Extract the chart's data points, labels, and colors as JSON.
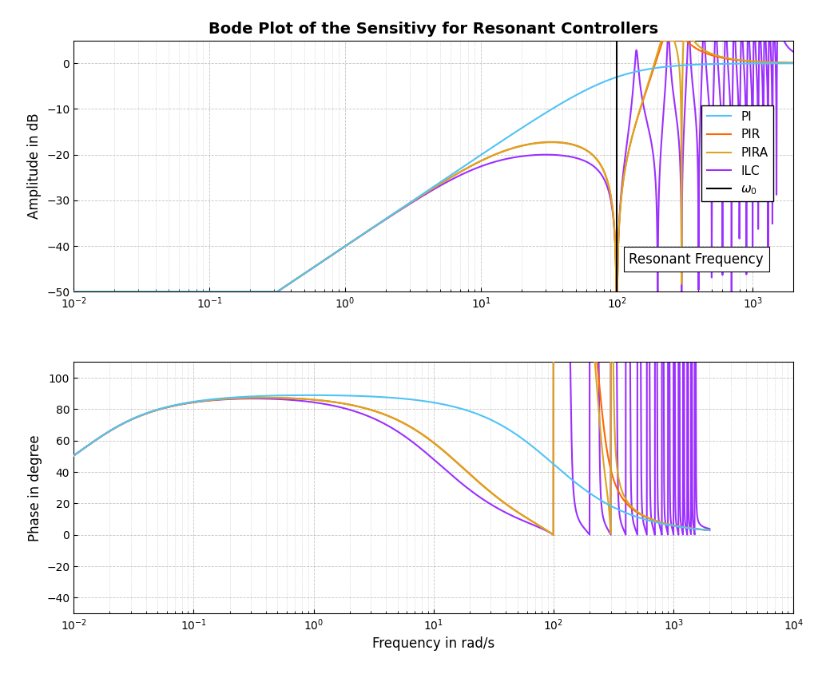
{
  "title": "Bode Plot of the Sensitivy for Resonant Controllers",
  "xlabel": "Frequency in rad/s",
  "ylabel_mag": "Amplitude in dB",
  "ylabel_phase": "Phase in degree",
  "omega0": 100,
  "mag_ylim": [
    -50,
    5
  ],
  "phase_ylim": [
    -50,
    110
  ],
  "mag_xlim": [
    0.01,
    2000
  ],
  "phase_xlim": [
    0.01,
    10000
  ],
  "colors": {
    "PI": "#4FC3F7",
    "PIR": "#FF6600",
    "PIRA": "#DAA520",
    "ILC": "#9B30FF"
  },
  "resonant_freq_label": "Resonant Frequency",
  "grid_color": "#AAAAAA",
  "background_color": "#FFFFFF",
  "linewidth": 1.5
}
